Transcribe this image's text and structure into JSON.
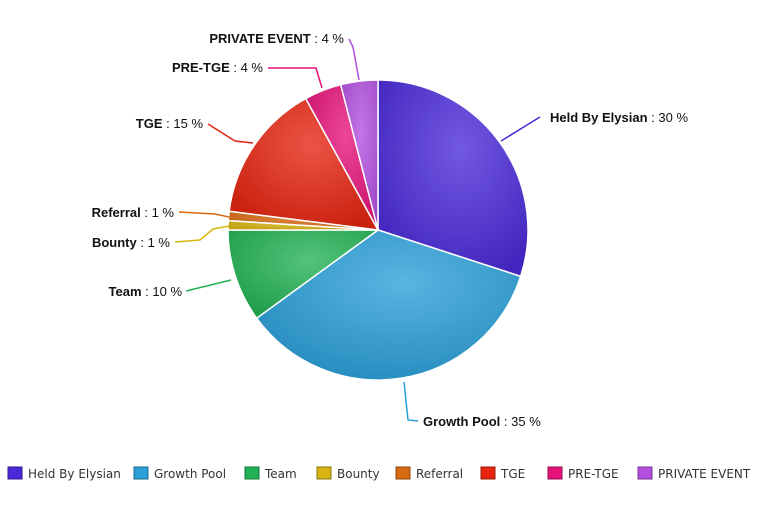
{
  "chart_data": {
    "type": "pie",
    "legend_position": "bottom",
    "slices": [
      {
        "label": "Held By Elysian",
        "value": 30,
        "color": "#4a2ad8",
        "label_text": "Held By Elysian",
        "value_text": ": 30 %"
      },
      {
        "label": "Growth Pool",
        "value": 35,
        "color": "#2a9fd8",
        "label_text": "Growth Pool",
        "value_text": ": 35 %"
      },
      {
        "label": "Team",
        "value": 10,
        "color": "#22b254",
        "label_text": "Team",
        "value_text": ": 10 %"
      },
      {
        "label": "Bounty",
        "value": 1,
        "color": "#d8b512",
        "label_text": "Bounty",
        "value_text": ": 1 %"
      },
      {
        "label": "Referral",
        "value": 1,
        "color": "#d86a12",
        "label_text": "Referral",
        "value_text": ": 1 %"
      },
      {
        "label": "TGE",
        "value": 15,
        "color": "#e52410",
        "label_text": "TGE",
        "value_text": ": 15 %"
      },
      {
        "label": "PRE-TGE",
        "value": 4,
        "color": "#e5127a",
        "label_text": "PRE-TGE",
        "value_text": ": 4 %"
      },
      {
        "label": "PRIVATE EVENT",
        "value": 4,
        "color": "#b24fe0",
        "label_text": "PRIVATE EVENT",
        "value_text": ": 4 %"
      }
    ],
    "legend": [
      "Held By Elysian",
      "Growth Pool",
      "Team",
      "Bounty",
      "Referral",
      "TGE",
      "PRE-TGE",
      "PRIVATE EVENT"
    ]
  }
}
